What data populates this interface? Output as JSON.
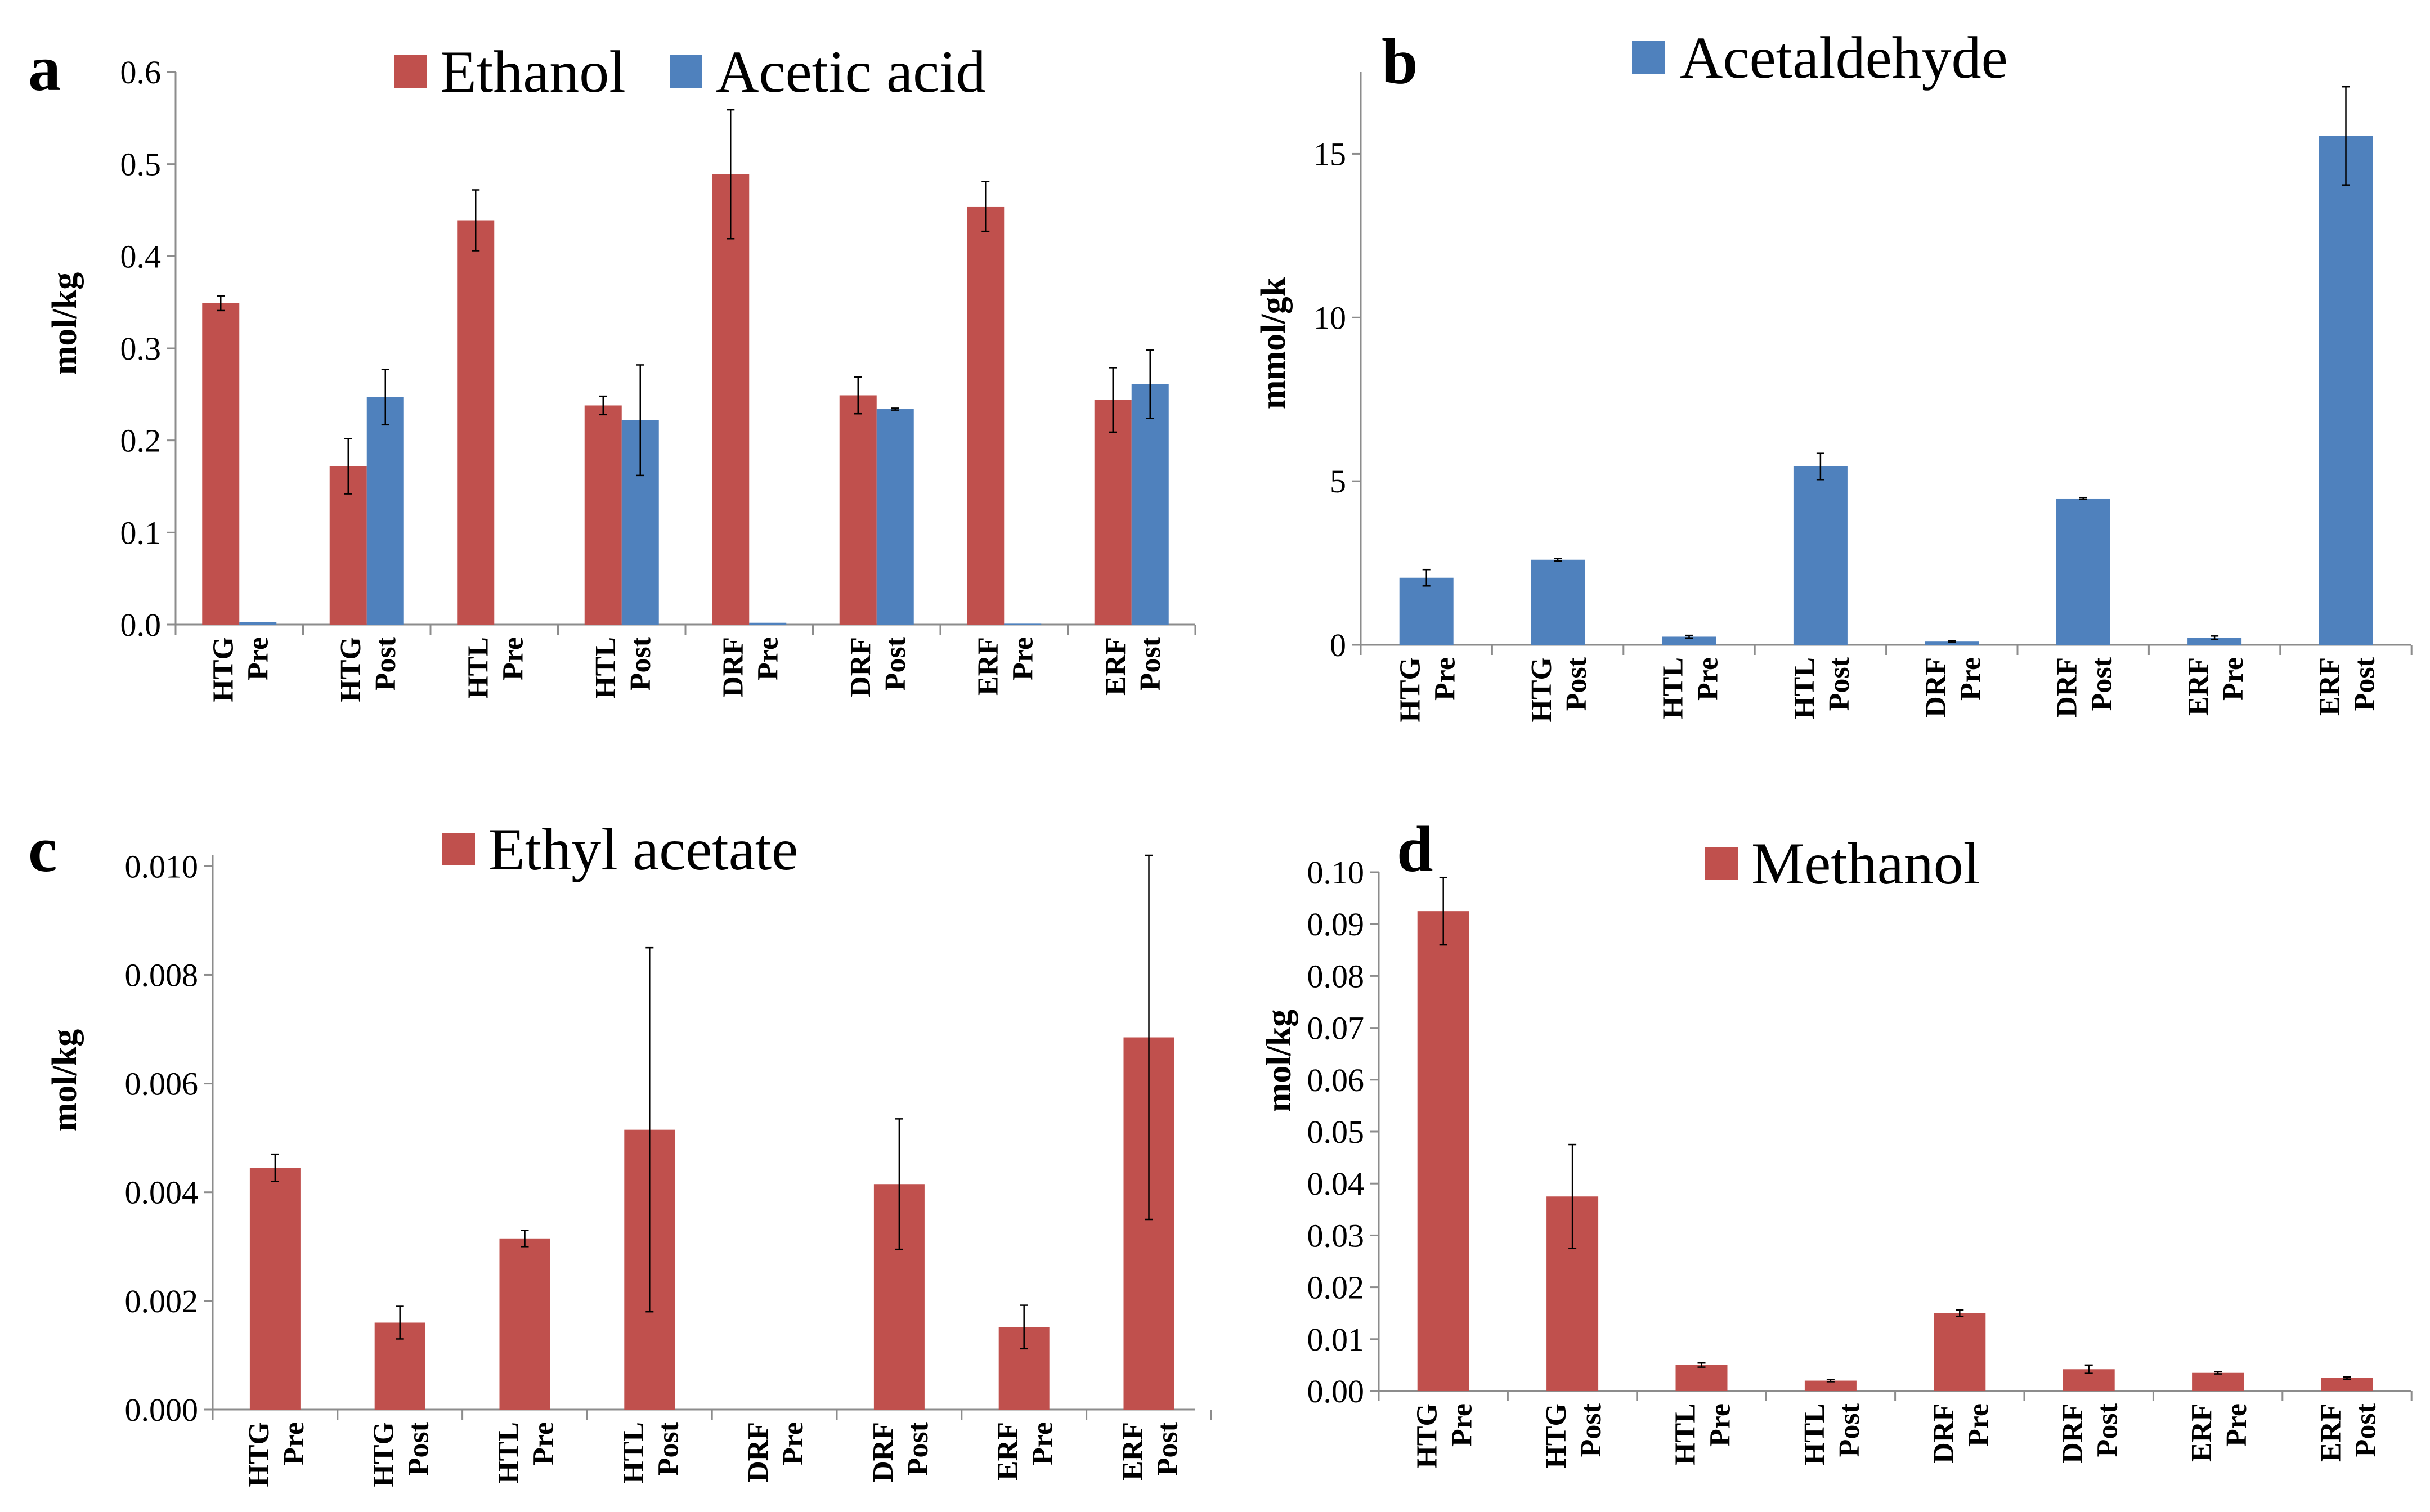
{
  "colors": {
    "red": "#c0504d",
    "blue": "#4f81bd",
    "axis": "#8c8c8c",
    "text": "#000000",
    "error": "#000000"
  },
  "chart_data": [
    {
      "panel": "a",
      "type": "bar",
      "ylabel": "mol/kg",
      "ylim": [
        0,
        0.6
      ],
      "yticks": [
        "0.0",
        "0.1",
        "0.2",
        "0.3",
        "0.4",
        "0.5",
        "0.6"
      ],
      "categories": [
        [
          "HTG",
          "Pre"
        ],
        [
          "HTG",
          "Post"
        ],
        [
          "HTL",
          "Pre"
        ],
        [
          "HTL",
          "Post"
        ],
        [
          "DRF",
          "Pre"
        ],
        [
          "DRF",
          "Post"
        ],
        [
          "ERF",
          "Pre"
        ],
        [
          "ERF",
          "Post"
        ]
      ],
      "series": [
        {
          "name": "Ethanol",
          "color": "red",
          "values": [
            0.349,
            0.172,
            0.439,
            0.238,
            0.489,
            0.249,
            0.454,
            0.244
          ],
          "errors": [
            0.008,
            0.03,
            0.033,
            0.01,
            0.07,
            0.02,
            0.027,
            0.035
          ]
        },
        {
          "name": "Acetic acid",
          "color": "blue",
          "values": [
            0.003,
            0.247,
            0,
            0.222,
            0.002,
            0.234,
            0.001,
            0.261
          ],
          "errors": [
            0,
            0.03,
            0,
            0.06,
            0,
            0.001,
            0,
            0.037
          ]
        }
      ]
    },
    {
      "panel": "b",
      "type": "bar",
      "ylabel": "mmol/gk",
      "ylim": [
        0,
        17.5
      ],
      "yticks": [
        "0",
        "5",
        "10",
        "15"
      ],
      "categories": [
        [
          "HTG",
          "Pre"
        ],
        [
          "HTG",
          "Post"
        ],
        [
          "HTL",
          "Pre"
        ],
        [
          "HTL",
          "Post"
        ],
        [
          "DRF",
          "Pre"
        ],
        [
          "DRF",
          "Post"
        ],
        [
          "ERF",
          "Pre"
        ],
        [
          "ERF",
          "Post"
        ]
      ],
      "series": [
        {
          "name": "Acetaldehyde",
          "color": "blue",
          "values": [
            2.05,
            2.6,
            0.25,
            5.45,
            0.1,
            4.47,
            0.22,
            15.55
          ],
          "errors": [
            0.25,
            0.04,
            0.04,
            0.4,
            0.02,
            0.03,
            0.05,
            1.5
          ]
        }
      ]
    },
    {
      "panel": "c",
      "type": "bar",
      "ylabel": "mol/kg",
      "ylim": [
        0,
        0.0102
      ],
      "yticks": [
        "0.000",
        "0.002",
        "0.004",
        "0.006",
        "0.008",
        "0.010"
      ],
      "categories": [
        [
          "HTG",
          "Pre"
        ],
        [
          "HTG",
          "Post"
        ],
        [
          "HTL",
          "Pre"
        ],
        [
          "HTL",
          "Post"
        ],
        [
          "DRF",
          "Pre"
        ],
        [
          "DRF",
          "Post"
        ],
        [
          "ERF",
          "Pre"
        ],
        [
          "ERF",
          "Post"
        ]
      ],
      "series": [
        {
          "name": "Ethyl acetate",
          "color": "red",
          "values": [
            0.00445,
            0.0016,
            0.00315,
            0.00515,
            0,
            0.00415,
            0.00152,
            0.00685
          ],
          "errors": [
            0.00025,
            0.0003,
            0.00015,
            0.00335,
            0,
            0.0012,
            0.0004,
            0.00335
          ]
        }
      ]
    },
    {
      "panel": "d",
      "type": "bar",
      "ylabel": "mol/kg",
      "ylim": [
        0,
        0.1
      ],
      "yticks": [
        "0.00",
        "0.01",
        "0.02",
        "0.03",
        "0.04",
        "0.05",
        "0.06",
        "0.07",
        "0.08",
        "0.09",
        "0.10"
      ],
      "categories": [
        [
          "HTG",
          "Pre"
        ],
        [
          "HTG",
          "Post"
        ],
        [
          "HTL",
          "Pre"
        ],
        [
          "HTL",
          "Post"
        ],
        [
          "DRF",
          "Pre"
        ],
        [
          "DRF",
          "Post"
        ],
        [
          "ERF",
          "Pre"
        ],
        [
          "ERF",
          "Post"
        ]
      ],
      "series": [
        {
          "name": "Methanol",
          "color": "red",
          "values": [
            0.0925,
            0.0375,
            0.005,
            0.002,
            0.015,
            0.0042,
            0.0035,
            0.0025
          ],
          "errors": [
            0.0065,
            0.01,
            0.0004,
            0.0002,
            0.0006,
            0.0008,
            0.0002,
            0.0002
          ]
        }
      ]
    }
  ]
}
